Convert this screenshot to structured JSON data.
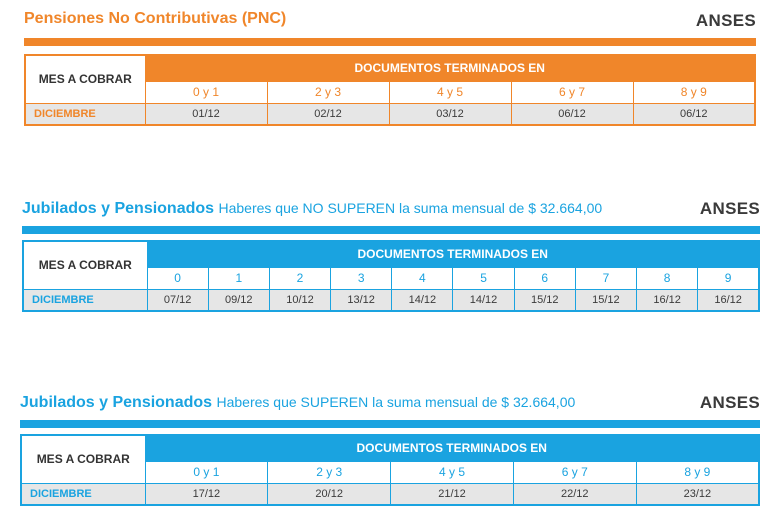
{
  "pnc": {
    "title": "Pensiones No Contributivas (PNC)",
    "brand": "ANSES",
    "mes_label": "MES A COBRAR",
    "header": "DOCUMENTOS TERMINADOS EN",
    "month": "DICIEMBRE",
    "groups": [
      "0 y 1",
      "2 y 3",
      "4 y 5",
      "6 y 7",
      "8 y 9"
    ],
    "dates": [
      "01/12",
      "02/12",
      "03/12",
      "06/12",
      "06/12"
    ]
  },
  "jub_no_superen": {
    "title": "Jubilados y Pensionados",
    "subtitle": "Haberes que NO SUPEREN la suma mensual de $ 32.664,00",
    "brand": "ANSES",
    "mes_label": "MES A COBRAR",
    "header": "DOCUMENTOS TERMINADOS EN",
    "month": "DICIEMBRE",
    "groups": [
      "0",
      "1",
      "2",
      "3",
      "4",
      "5",
      "6",
      "7",
      "8",
      "9"
    ],
    "dates": [
      "07/12",
      "09/12",
      "10/12",
      "13/12",
      "14/12",
      "14/12",
      "15/12",
      "15/12",
      "16/12",
      "16/12"
    ]
  },
  "jub_superen": {
    "title": "Jubilados y Pensionados",
    "subtitle": "Haberes que SUPEREN la suma mensual de $ 32.664,00",
    "brand": "ANSES",
    "mes_label": "MES A COBRAR",
    "header": "DOCUMENTOS TERMINADOS EN",
    "month": "DICIEMBRE",
    "groups": [
      "0 y 1",
      "2 y 3",
      "4 y 5",
      "6 y 7",
      "8 y 9"
    ],
    "dates": [
      "17/12",
      "20/12",
      "21/12",
      "22/12",
      "23/12"
    ]
  },
  "colors": {
    "orange": "#f0862a",
    "blue": "#1aa3e0"
  }
}
